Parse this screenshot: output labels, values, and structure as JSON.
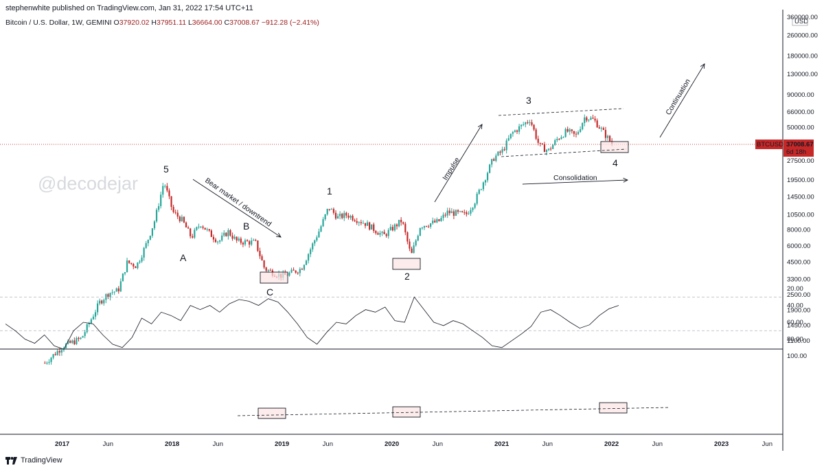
{
  "header": {
    "publisher": "stephenwhite published on TradingView.com, Jan 31, 2022 17:54 UTC+11",
    "symbol": "Bitcoin / U.S. Dollar, 1W, GEMINI",
    "ohlc": [
      {
        "k": "O",
        "v": "37920.02"
      },
      {
        "k": "H",
        "v": "37951.11"
      },
      {
        "k": "L",
        "v": "36664.00"
      },
      {
        "k": "C",
        "v": "37008.67"
      }
    ],
    "change": "−912.28 (−2.41%)"
  },
  "watermark": "@decodejar",
  "price_label": {
    "symbol": "BTCUSD",
    "value": "37008.67",
    "countdown": "6d 18h"
  },
  "currency": "USD",
  "footer": {
    "brand": "TradingView"
  },
  "colors": {
    "up": "#26a69a",
    "down": "#c62828",
    "price_line": "#c62828",
    "rsi": "#131722",
    "box_fill": "#fce4e4"
  },
  "annotations": {
    "waves": [
      "5",
      "A",
      "B",
      "C",
      "1",
      "2",
      "3",
      "4"
    ],
    "bear": "Bear market / downtrend",
    "impulse": "Impulse",
    "consolidation": "Consolidation",
    "continuation": "Continuation"
  },
  "chart_data": [
    {
      "type": "candlestick",
      "interval": "1W",
      "scale": "log",
      "ylim": [
        950,
        360000
      ],
      "price_ticks": [
        "360000.00",
        "260000.00",
        "180000.00",
        "130000.00",
        "90000.00",
        "66000.00",
        "50000.00",
        "37008.67",
        "27500.00",
        "19500.00",
        "14500.00",
        "10500.00",
        "8000.00",
        "6000.00",
        "4500.00",
        "3300.00",
        "2500.00",
        "1900.00",
        "1450.00",
        "1100.00"
      ],
      "time_ticks": [
        "2017",
        "Jun",
        "2018",
        "Jun",
        "2019",
        "Jun",
        "2020",
        "Jun",
        "2021",
        "Jun",
        "2022",
        "Jun",
        "2023",
        "Jun"
      ],
      "path": [
        [
          "2016-11",
          740
        ],
        [
          "2017-01",
          1000
        ],
        [
          "2017-03",
          1150
        ],
        [
          "2017-05",
          2200
        ],
        [
          "2017-06",
          2600
        ],
        [
          "2017-07",
          2700
        ],
        [
          "2017-08",
          4500
        ],
        [
          "2017-09",
          4200
        ],
        [
          "2017-10",
          6000
        ],
        [
          "2017-11",
          9500
        ],
        [
          "2017-12",
          19000
        ],
        [
          "2018-01",
          11000
        ],
        [
          "2018-02",
          9500
        ],
        [
          "2018-03",
          7000
        ],
        [
          "2018-04",
          9000
        ],
        [
          "2018-05",
          7500
        ],
        [
          "2018-06",
          6500
        ],
        [
          "2018-07",
          7800
        ],
        [
          "2018-08",
          6500
        ],
        [
          "2018-10",
          6400
        ],
        [
          "2018-11",
          4000
        ],
        [
          "2018-12",
          3700
        ],
        [
          "2019-01",
          3500
        ],
        [
          "2019-03",
          4000
        ],
        [
          "2019-05",
          8000
        ],
        [
          "2019-06",
          12000
        ],
        [
          "2019-07",
          10000
        ],
        [
          "2019-08",
          10500
        ],
        [
          "2019-10",
          9000
        ],
        [
          "2019-12",
          7200
        ],
        [
          "2020-02",
          9500
        ],
        [
          "2020-03",
          5000
        ],
        [
          "2020-04",
          8600
        ],
        [
          "2020-06",
          9300
        ],
        [
          "2020-07",
          11000
        ],
        [
          "2020-09",
          10500
        ],
        [
          "2020-10",
          13500
        ],
        [
          "2020-12",
          28900
        ],
        [
          "2021-01",
          33000
        ],
        [
          "2021-02",
          45000
        ],
        [
          "2021-04",
          58000
        ],
        [
          "2021-05",
          36000
        ],
        [
          "2021-06",
          33000
        ],
        [
          "2021-07",
          41000
        ],
        [
          "2021-08",
          47000
        ],
        [
          "2021-09",
          43000
        ],
        [
          "2021-10",
          61000
        ],
        [
          "2021-11",
          57000
        ],
        [
          "2021-12",
          46000
        ],
        [
          "2022-01",
          37008
        ]
      ],
      "last": 37008.67
    },
    {
      "type": "line",
      "name": "RSI",
      "ylim": [
        10,
        100
      ],
      "ticks": [
        100,
        80,
        60,
        40,
        20
      ],
      "band": [
        30,
        70
      ],
      "series": [
        {
          "values": [
            62,
            70,
            80,
            85,
            75,
            88,
            92,
            70,
            60,
            62,
            75,
            86,
            90,
            78,
            55,
            62,
            48,
            52,
            58,
            40,
            45,
            40,
            48,
            38,
            33,
            35,
            40,
            32,
            36,
            48,
            62,
            78,
            86,
            72,
            60,
            62,
            52,
            45,
            48,
            42,
            58,
            60,
            30,
            45,
            60,
            64,
            58,
            62,
            70,
            78,
            88,
            90,
            82,
            74,
            65,
            48,
            45,
            52,
            60,
            67,
            63,
            52,
            44,
            40
          ]
        }
      ]
    }
  ]
}
